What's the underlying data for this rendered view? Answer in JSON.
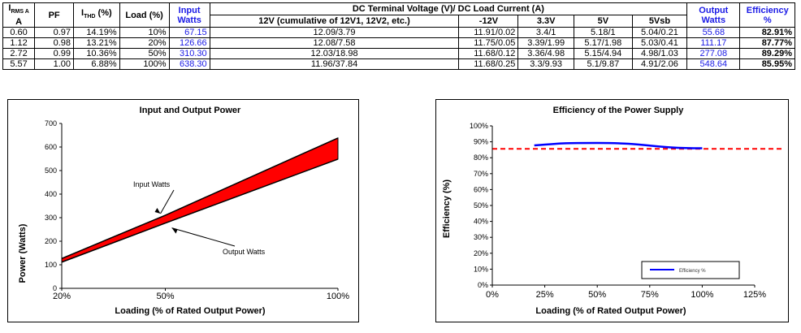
{
  "table": {
    "headers": {
      "irms": "I",
      "irms_sub": "RMS A",
      "irms_unit": "A",
      "pf": "PF",
      "ithd": "I",
      "ithd_sub": "THD",
      "ithd_unit": "(%)",
      "load": "Load (%)",
      "input_watts_1": "Input",
      "input_watts_2": "Watts",
      "dc_group": "DC Terminal Voltage (V)/ DC Load Current (A)",
      "col_12v": "12V (cumulative of 12V1, 12V2, etc.)",
      "col_neg12v": "-12V",
      "col_3v3": "3.3V",
      "col_5v": "5V",
      "col_5vsb": "5Vsb",
      "output_watts_1": "Output",
      "output_watts_2": "Watts",
      "efficiency_1": "Efficiency",
      "efficiency_2": "%"
    },
    "rows": [
      {
        "irms": "0.60",
        "pf": "0.97",
        "ithd": "14.19%",
        "load": "10%",
        "input": "67.15",
        "v12": "12.09/3.79",
        "vneg12": "11.91/0.02",
        "v3v3": "3.4/1",
        "v5": "5.18/1",
        "v5sb": "5.04/0.21",
        "output": "55.68",
        "eff": "82.91%"
      },
      {
        "irms": "1.12",
        "pf": "0.98",
        "ithd": "13.21%",
        "load": "20%",
        "input": "126.66",
        "v12": "12.08/7.58",
        "vneg12": "11.75/0.05",
        "v3v3": "3.39/1.99",
        "v5": "5.17/1.98",
        "v5sb": "5.03/0.41",
        "output": "111.17",
        "eff": "87.77%"
      },
      {
        "irms": "2.72",
        "pf": "0.99",
        "ithd": "10.36%",
        "load": "50%",
        "input": "310.30",
        "v12": "12.03/18.98",
        "vneg12": "11.68/0.12",
        "v3v3": "3.36/4.98",
        "v5": "5.15/4.94",
        "v5sb": "4.98/1.03",
        "output": "277.08",
        "eff": "89.29%"
      },
      {
        "irms": "5.57",
        "pf": "1.00",
        "ithd": "6.88%",
        "load": "100%",
        "input": "638.30",
        "v12": "11.96/37.84",
        "vneg12": "11.68/0.25",
        "v3v3": "3.3/9.93",
        "v5": "5.1/9.87",
        "v5sb": "4.91/2.06",
        "output": "548.64",
        "eff": "85.95%"
      }
    ]
  },
  "chart_data": [
    {
      "type": "area",
      "title": "Input and Output Power",
      "xlabel": "Loading (% of Rated Output Power)",
      "ylabel": "Power (Watts)",
      "categories": [
        "20%",
        "50%",
        "100%"
      ],
      "x": [
        20,
        50,
        100
      ],
      "xlim": [
        20,
        100
      ],
      "ylim": [
        0,
        700
      ],
      "yticks": [
        0,
        100,
        200,
        300,
        400,
        500,
        600,
        700
      ],
      "series": [
        {
          "name": "Input Watts",
          "values": [
            126.66,
            310.3,
            638.3
          ]
        },
        {
          "name": "Output Watts",
          "values": [
            111.17,
            277.08,
            548.64
          ]
        }
      ],
      "fill_color": "#ff0000",
      "grid": false
    },
    {
      "type": "line",
      "title": "Efficiency of the Power Supply",
      "xlabel": "Loading (% of Rated Output Power)",
      "ylabel": "Efficiency (%)",
      "xticks": [
        "0%",
        "25%",
        "50%",
        "75%",
        "100%",
        "125%"
      ],
      "xlim": [
        0,
        125
      ],
      "ylim": [
        0,
        100
      ],
      "yticks": [
        "0%",
        "10%",
        "20%",
        "30%",
        "40%",
        "50%",
        "60%",
        "70%",
        "80%",
        "90%",
        "100%"
      ],
      "series": [
        {
          "name": "Efficiency %",
          "x": [
            20,
            50,
            100
          ],
          "values": [
            87.77,
            89.29,
            85.95
          ],
          "color": "#0000ff"
        }
      ],
      "reference_line": {
        "value": 80,
        "color": "#ff0000"
      },
      "legend": "bottom-right",
      "grid": false
    }
  ]
}
